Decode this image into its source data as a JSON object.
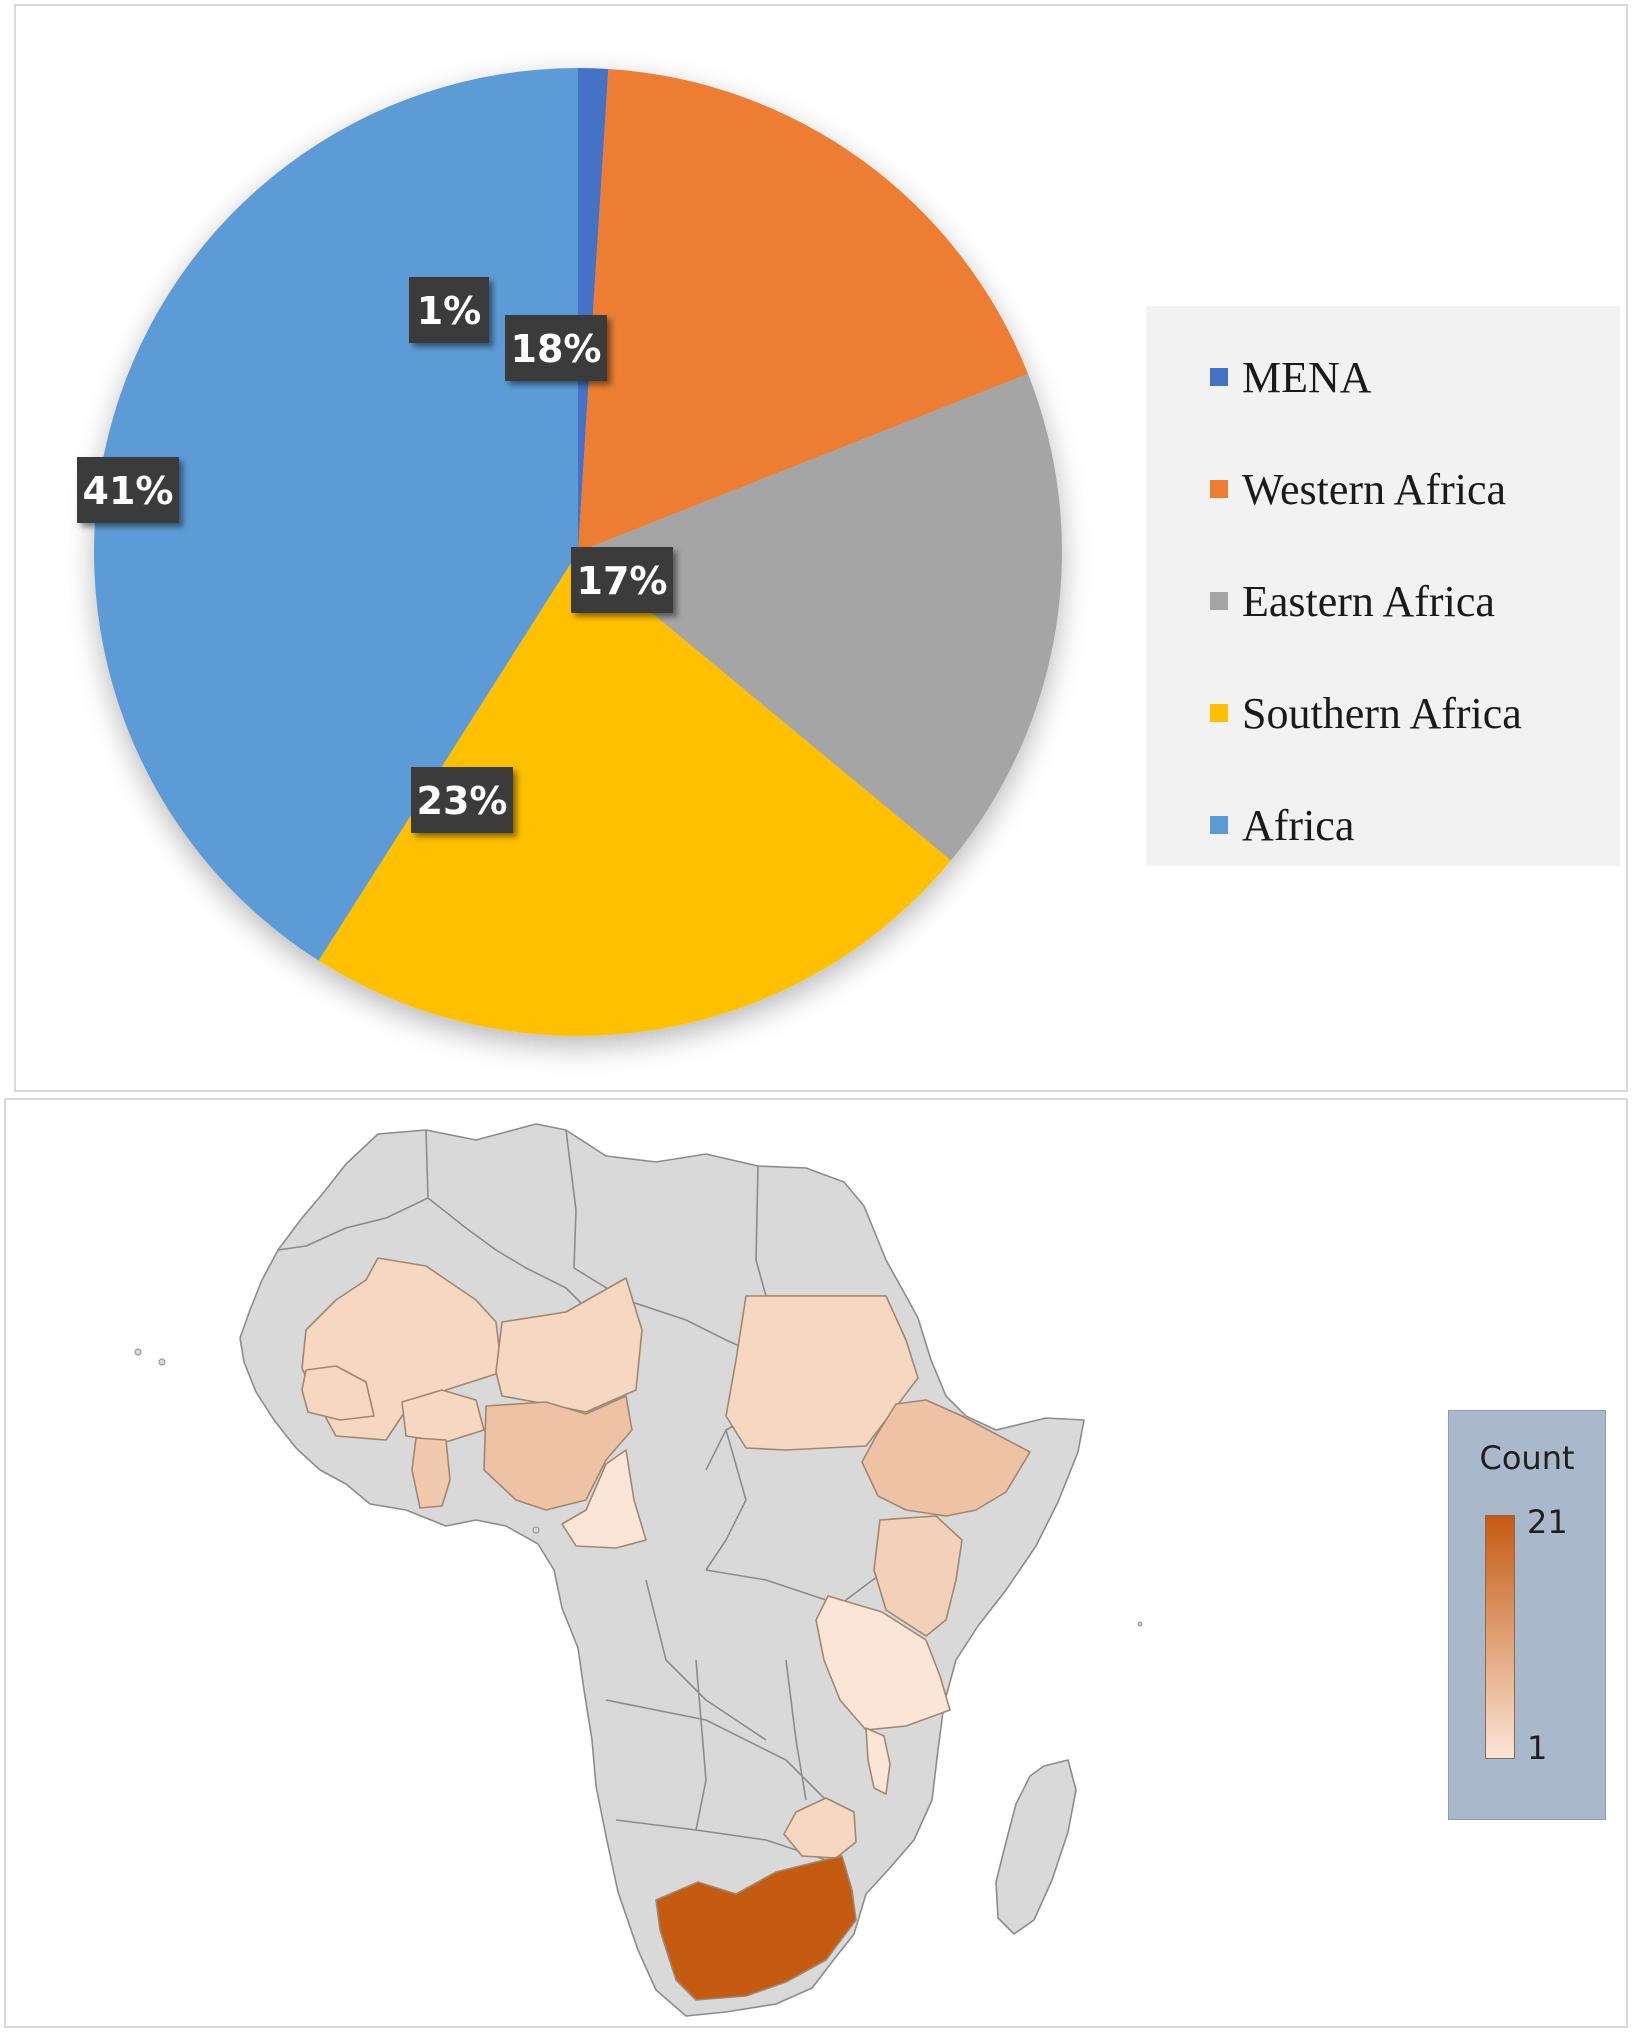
{
  "chart_data": [
    {
      "type": "pie",
      "title": "",
      "categories": [
        "MENA",
        "Western Africa",
        "Eastern Africa",
        "Southern Africa",
        "Africa"
      ],
      "values": [
        1,
        18,
        17,
        23,
        41
      ],
      "data_labels": [
        "1%",
        "18%",
        "17%",
        "23%",
        "41%"
      ],
      "colors": [
        "#4472c4",
        "#ed7d31",
        "#a5a5a5",
        "#ffc000",
        "#5b9bd5"
      ],
      "legend": "right",
      "start_angle_deg": 0,
      "direction": "clockwise"
    },
    {
      "type": "heatmap",
      "title": "",
      "legend_title": "Count",
      "scale_min": "1",
      "scale_max": "21",
      "color_min": "#fbe5d6",
      "color_max": "#c55a11",
      "no_data_color": "#d9d9d9",
      "regions": [
        {
          "name": "South Africa",
          "value": 21
        },
        {
          "name": "Ethiopia",
          "value": 6
        },
        {
          "name": "Nigeria",
          "value": 6
        },
        {
          "name": "Ghana",
          "value": 5
        },
        {
          "name": "Kenya",
          "value": 4
        },
        {
          "name": "Sudan",
          "value": 3
        },
        {
          "name": "Mali",
          "value": 3
        },
        {
          "name": "Niger",
          "value": 3
        },
        {
          "name": "Burkina Faso",
          "value": 3
        },
        {
          "name": "Senegal",
          "value": 3
        },
        {
          "name": "Zimbabwe",
          "value": 3
        },
        {
          "name": "Tanzania",
          "value": 1
        },
        {
          "name": "Cameroon",
          "value": 1
        },
        {
          "name": "Malawi",
          "value": 1
        }
      ]
    }
  ]
}
